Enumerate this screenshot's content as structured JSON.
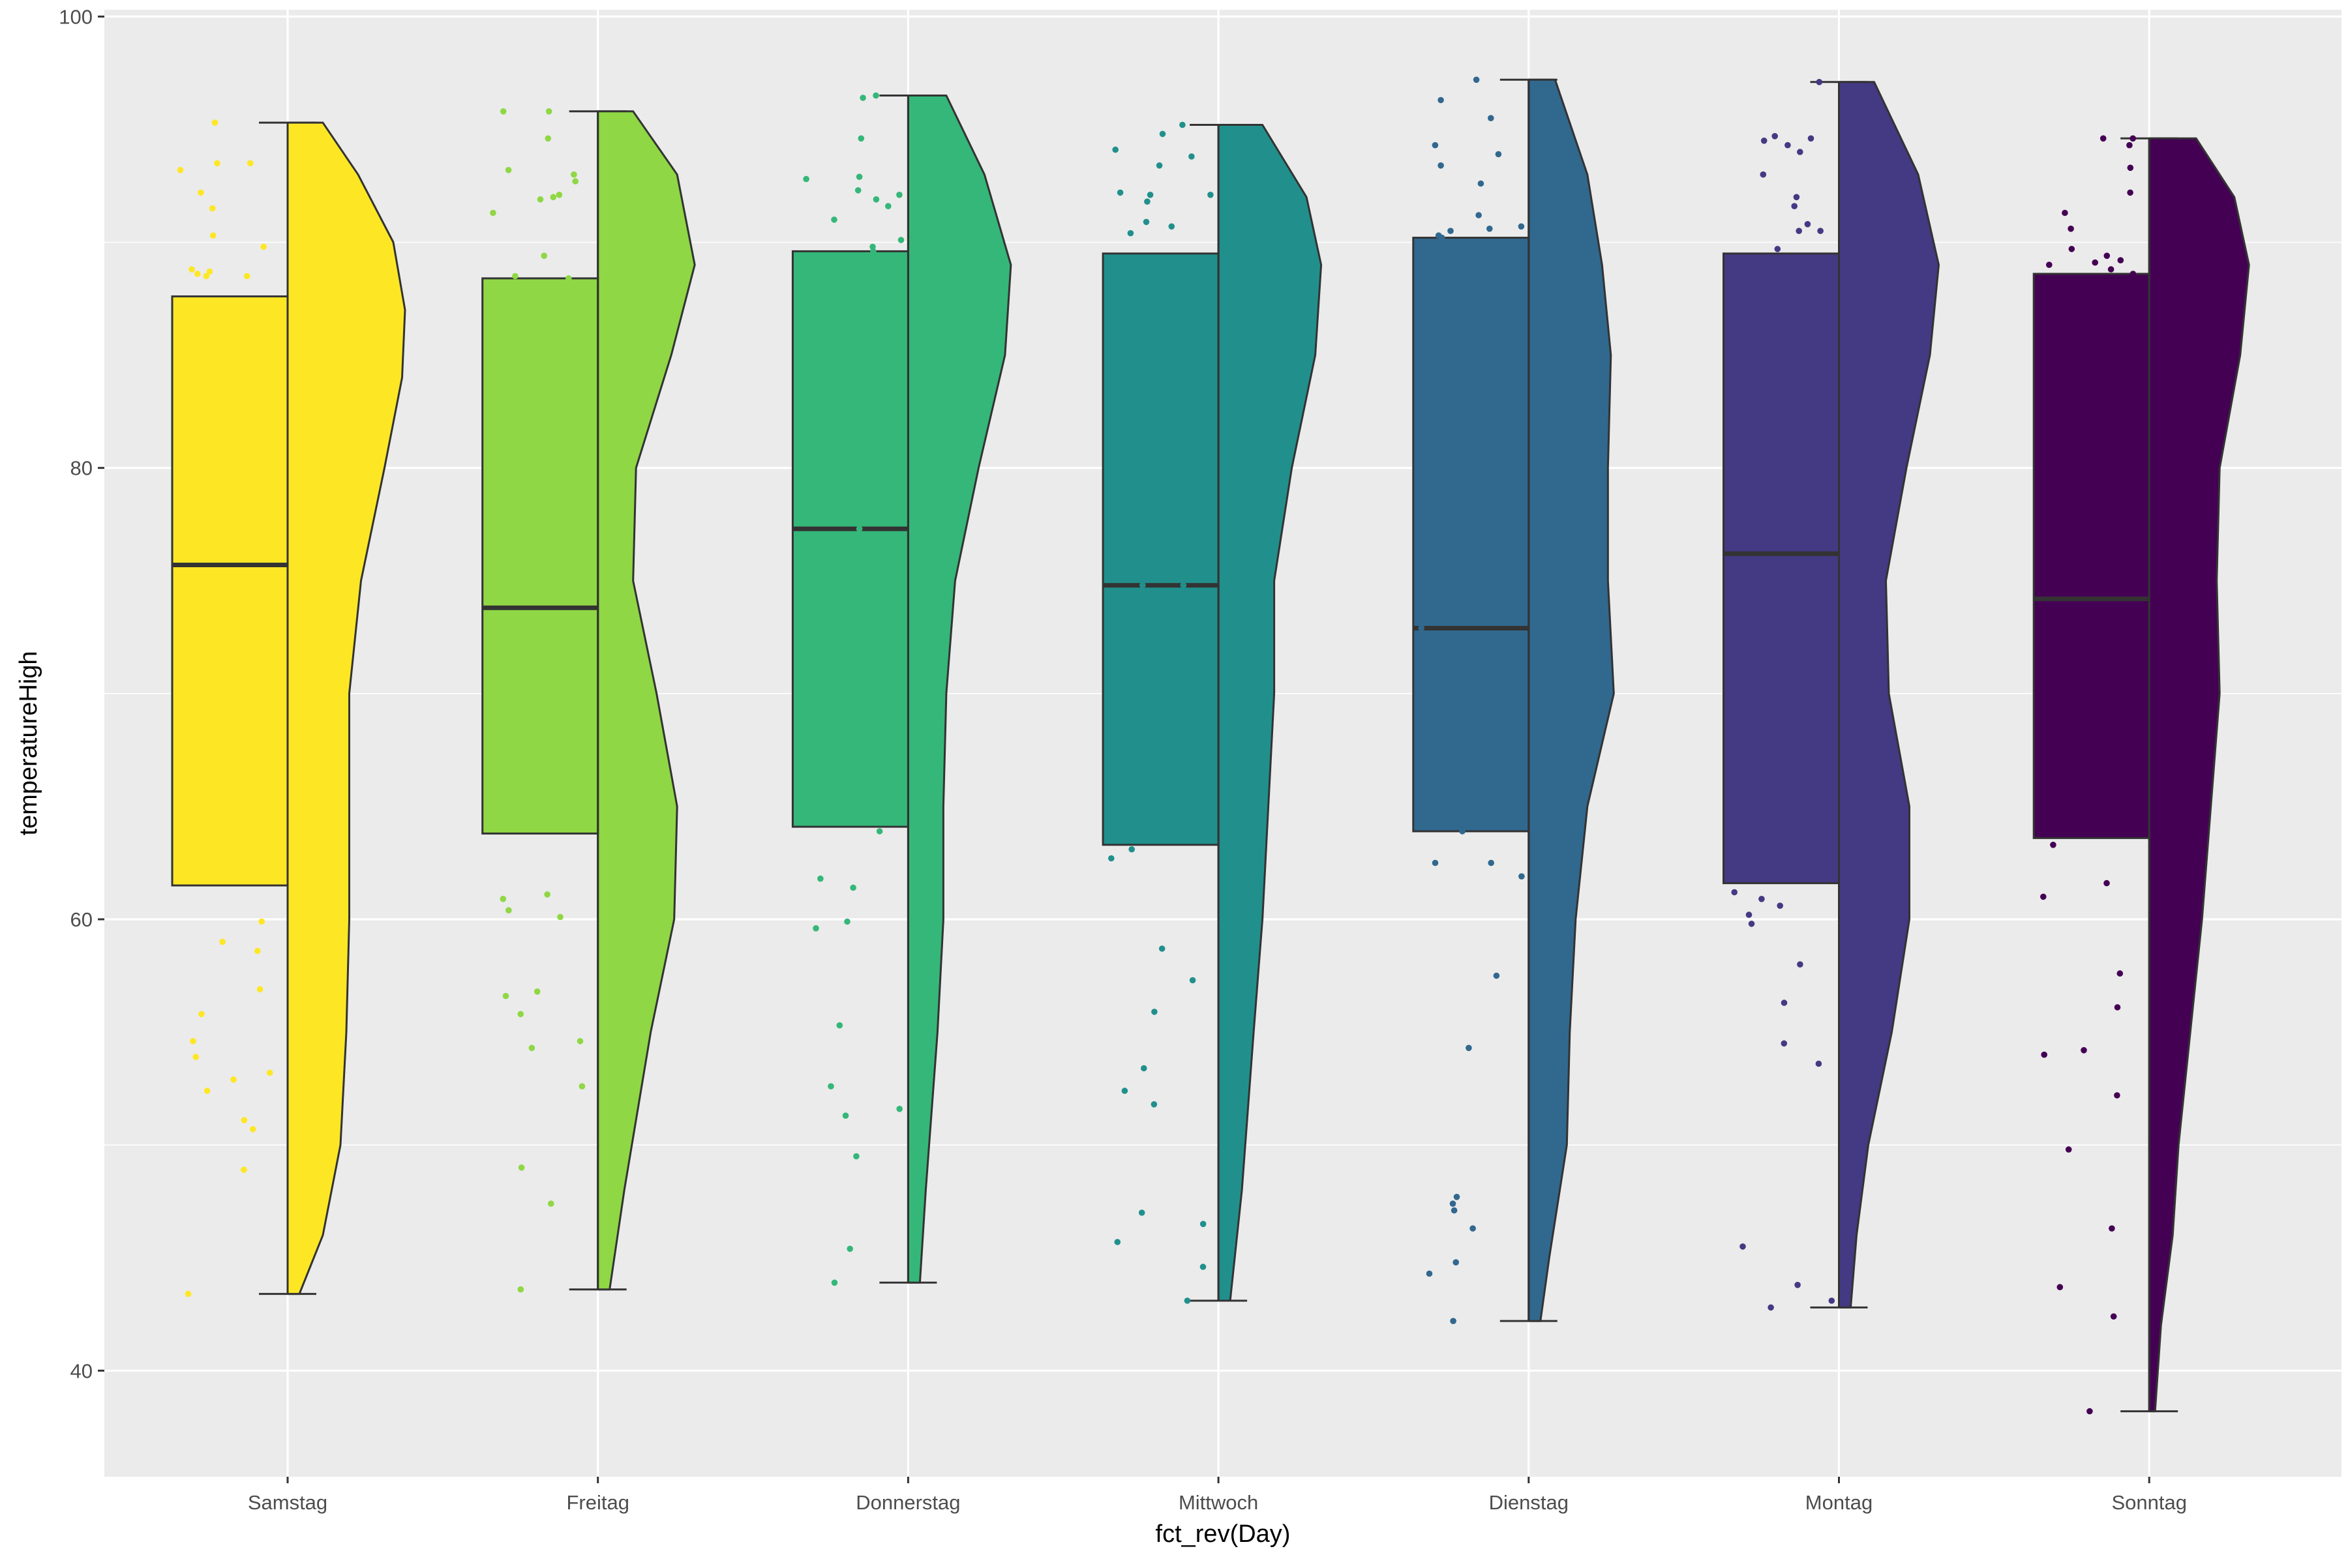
{
  "chart_data": {
    "type": "raincloud",
    "title": "",
    "xlabel": "fct_rev(Day)",
    "ylabel": "temperatureHigh",
    "ylim": [
      35.3,
      100.3
    ],
    "yticks": [
      40,
      60,
      80,
      100
    ],
    "grid": true,
    "legend": "none",
    "background_color": "#EBEBEB",
    "grid_color": "#FFFFFF",
    "outline_color": "#333333",
    "categories": [
      "Samstag",
      "Freitag",
      "Donnerstag",
      "Mittwoch",
      "Dienstag",
      "Montag",
      "Sonntag"
    ],
    "series": [
      {
        "color": "#FDE725",
        "box": {
          "min": 43.4,
          "q1": 61.5,
          "median": 75.7,
          "q3": 87.6,
          "max": 95.3
        },
        "density": [
          [
            43.4,
            0.04
          ],
          [
            46,
            0.12
          ],
          [
            50,
            0.18
          ],
          [
            55,
            0.2
          ],
          [
            60,
            0.21
          ],
          [
            65,
            0.21
          ],
          [
            70,
            0.21
          ],
          [
            75,
            0.25
          ],
          [
            80,
            0.33
          ],
          [
            84,
            0.39
          ],
          [
            87,
            0.4
          ],
          [
            90,
            0.36
          ],
          [
            93,
            0.24
          ],
          [
            95.3,
            0.12
          ]
        ],
        "points": [
          95.3,
          93.5,
          93.5,
          93.2,
          91.5,
          90.3,
          89.8,
          88.8,
          88.7,
          88.6,
          88.5,
          88.5,
          92.2,
          59.9,
          59.0,
          58.6,
          56.9,
          55.8,
          54.6,
          53.9,
          53.2,
          52.9,
          52.4,
          51.1,
          50.7,
          48.9,
          43.4
        ]
      },
      {
        "color": "#8FD744",
        "box": {
          "min": 43.6,
          "q1": 63.8,
          "median": 73.8,
          "q3": 88.4,
          "max": 95.8
        },
        "density": [
          [
            43.6,
            0.04
          ],
          [
            48,
            0.09
          ],
          [
            55,
            0.18
          ],
          [
            60,
            0.26
          ],
          [
            65,
            0.27
          ],
          [
            70,
            0.2
          ],
          [
            75,
            0.12
          ],
          [
            80,
            0.13
          ],
          [
            85,
            0.25
          ],
          [
            89,
            0.33
          ],
          [
            93,
            0.27
          ],
          [
            95.8,
            0.12
          ]
        ],
        "points": [
          95.8,
          95.8,
          94.6,
          93.2,
          93.0,
          92.7,
          92.1,
          92.0,
          91.9,
          91.3,
          89.4,
          88.5,
          88.4,
          61.1,
          60.9,
          60.4,
          60.1,
          56.8,
          56.6,
          55.8,
          54.6,
          54.3,
          52.6,
          49.0,
          47.4,
          43.6
        ]
      },
      {
        "color": "#35B779",
        "box": {
          "min": 43.9,
          "q1": 64.1,
          "median": 77.3,
          "q3": 89.6,
          "max": 96.5
        },
        "density": [
          [
            43.9,
            0.04
          ],
          [
            48,
            0.06
          ],
          [
            55,
            0.1
          ],
          [
            60,
            0.12
          ],
          [
            65,
            0.12
          ],
          [
            70,
            0.13
          ],
          [
            75,
            0.16
          ],
          [
            80,
            0.24
          ],
          [
            85,
            0.33
          ],
          [
            89,
            0.35
          ],
          [
            93,
            0.26
          ],
          [
            96.5,
            0.13
          ]
        ],
        "points": [
          96.5,
          96.4,
          94.6,
          92.9,
          92.8,
          92.3,
          92.1,
          91.9,
          91.6,
          91.0,
          90.1,
          89.8,
          89.6,
          77.3,
          63.9,
          61.8,
          61.4,
          59.9,
          59.6,
          55.3,
          52.6,
          51.6,
          51.3,
          49.5,
          45.4,
          43.9
        ]
      },
      {
        "color": "#21908D",
        "box": {
          "min": 43.1,
          "q1": 63.3,
          "median": 74.8,
          "q3": 89.5,
          "max": 95.2
        },
        "density": [
          [
            43.1,
            0.04
          ],
          [
            48,
            0.08
          ],
          [
            55,
            0.12
          ],
          [
            60,
            0.15
          ],
          [
            65,
            0.17
          ],
          [
            70,
            0.19
          ],
          [
            75,
            0.19
          ],
          [
            80,
            0.25
          ],
          [
            85,
            0.33
          ],
          [
            89,
            0.35
          ],
          [
            92,
            0.3
          ],
          [
            95.2,
            0.15
          ]
        ],
        "points": [
          95.2,
          94.8,
          94.1,
          93.8,
          93.4,
          92.2,
          92.1,
          92.1,
          91.8,
          90.9,
          90.7,
          90.4,
          74.8,
          74.8,
          63.1,
          62.7,
          58.7,
          57.3,
          55.9,
          53.4,
          52.4,
          51.8,
          47.0,
          46.5,
          45.7,
          44.6,
          43.1
        ]
      },
      {
        "color": "#31688E",
        "box": {
          "min": 42.2,
          "q1": 63.9,
          "median": 72.9,
          "q3": 90.2,
          "max": 97.2
        },
        "density": [
          [
            42.2,
            0.04
          ],
          [
            45,
            0.07
          ],
          [
            50,
            0.13
          ],
          [
            55,
            0.14
          ],
          [
            60,
            0.16
          ],
          [
            65,
            0.2
          ],
          [
            70,
            0.29
          ],
          [
            75,
            0.27
          ],
          [
            80,
            0.27
          ],
          [
            85,
            0.28
          ],
          [
            89,
            0.25
          ],
          [
            93,
            0.2
          ],
          [
            97.2,
            0.09
          ]
        ],
        "points": [
          97.2,
          96.3,
          95.5,
          94.3,
          93.9,
          93.4,
          92.6,
          91.2,
          90.7,
          90.6,
          90.5,
          90.3,
          90.2,
          72.9,
          63.9,
          62.5,
          62.5,
          61.9,
          57.5,
          54.3,
          47.7,
          47.4,
          47.1,
          46.3,
          44.8,
          44.3,
          42.2
        ]
      },
      {
        "color": "#443983",
        "box": {
          "min": 42.8,
          "q1": 61.6,
          "median": 76.2,
          "q3": 89.5,
          "max": 97.1
        },
        "density": [
          [
            42.8,
            0.04
          ],
          [
            46,
            0.06
          ],
          [
            50,
            0.1
          ],
          [
            55,
            0.18
          ],
          [
            60,
            0.24
          ],
          [
            65,
            0.24
          ],
          [
            70,
            0.17
          ],
          [
            75,
            0.16
          ],
          [
            80,
            0.23
          ],
          [
            85,
            0.31
          ],
          [
            89,
            0.34
          ],
          [
            93,
            0.27
          ],
          [
            97.1,
            0.12
          ]
        ],
        "points": [
          97.1,
          94.7,
          94.6,
          94.5,
          94.3,
          94.0,
          93.0,
          92.0,
          91.6,
          90.8,
          90.5,
          90.5,
          89.7,
          61.2,
          60.9,
          60.6,
          60.2,
          59.8,
          58.0,
          56.3,
          54.5,
          53.6,
          45.5,
          43.8,
          43.1,
          42.8
        ]
      },
      {
        "color": "#440154",
        "box": {
          "min": 38.2,
          "q1": 63.6,
          "median": 74.2,
          "q3": 88.6,
          "max": 94.6
        },
        "density": [
          [
            38.2,
            0.02
          ],
          [
            42,
            0.04
          ],
          [
            46,
            0.08
          ],
          [
            50,
            0.1
          ],
          [
            55,
            0.14
          ],
          [
            60,
            0.18
          ],
          [
            65,
            0.21
          ],
          [
            70,
            0.24
          ],
          [
            75,
            0.23
          ],
          [
            80,
            0.24
          ],
          [
            85,
            0.31
          ],
          [
            89,
            0.34
          ],
          [
            92,
            0.29
          ],
          [
            94.6,
            0.16
          ]
        ],
        "points": [
          94.6,
          94.6,
          94.3,
          93.3,
          92.2,
          91.3,
          90.6,
          89.7,
          89.4,
          89.2,
          89.1,
          89.0,
          88.8,
          88.6,
          63.3,
          61.6,
          61.0,
          57.6,
          56.1,
          54.2,
          54.0,
          52.2,
          49.8,
          46.3,
          43.7,
          42.4,
          38.2
        ]
      }
    ]
  }
}
